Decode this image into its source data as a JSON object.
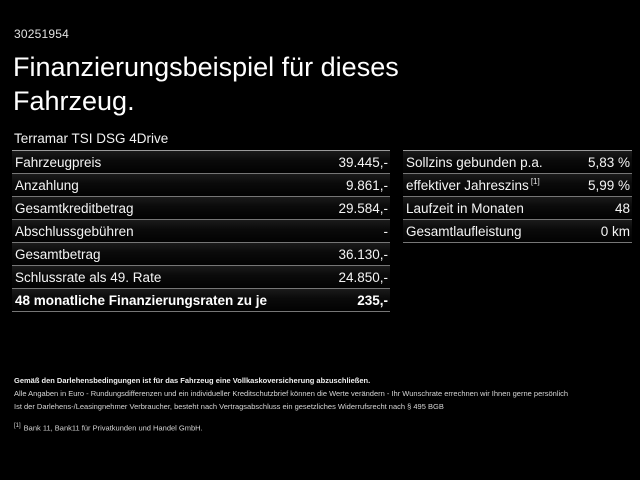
{
  "colors": {
    "background": "#000000",
    "text": "#ffffff",
    "divider": "#8c8c8c"
  },
  "header": {
    "vehicle_id": "30251954",
    "title": "Finanzierungsbeispiel für dieses Fahrzeug.",
    "model": "Terramar TSI DSG 4Drive"
  },
  "tables": {
    "left_rows": [
      {
        "label": "Fahrzeugpreis",
        "value": "39.445,-"
      },
      {
        "label": "Anzahlung",
        "value": "9.861,-"
      },
      {
        "label": "Gesamtkreditbetrag",
        "value": "29.584,-"
      },
      {
        "label": "Abschlussgebühren",
        "value": "-"
      },
      {
        "label": "Gesamtbetrag",
        "value": "36.130,-"
      },
      {
        "label": "Schlussrate als 49. Rate",
        "value": "24.850,-"
      },
      {
        "label": "48 monatliche Finanzierungsraten zu je",
        "value": "235,-"
      }
    ],
    "right_rows": [
      {
        "label": "Sollzins gebunden p.a.",
        "value": "5,83 %"
      },
      {
        "label": "effektiver Jahreszins",
        "footnote_marker": "[1]",
        "value": "5,99 %"
      },
      {
        "label": "Laufzeit in Monaten",
        "value": "48"
      },
      {
        "label": "Gesamtlaufleistung",
        "value": "0 km"
      }
    ]
  },
  "footer": {
    "insurance_note": "Gemäß den Darlehensbedingungen ist für das Fahrzeug eine Vollkaskoversicherung abzuschließen.",
    "line2": "Alle Angaben in Euro - Rundungsdifferenzen und ein individueller Kreditschutzbrief können die Werte verändern - Ihr Wunschrate errechnen wir Ihnen gerne persönlich",
    "line3": "Ist der Darlehens-/Leasingnehmer Verbraucher, besteht nach Vertragsabschluss ein gesetzliches Widerrufsrecht nach § 495 BGB",
    "footnote_marker": "[1]",
    "footnote_text": "Bank 11, Bank11 für Privatkunden und Handel GmbH."
  }
}
